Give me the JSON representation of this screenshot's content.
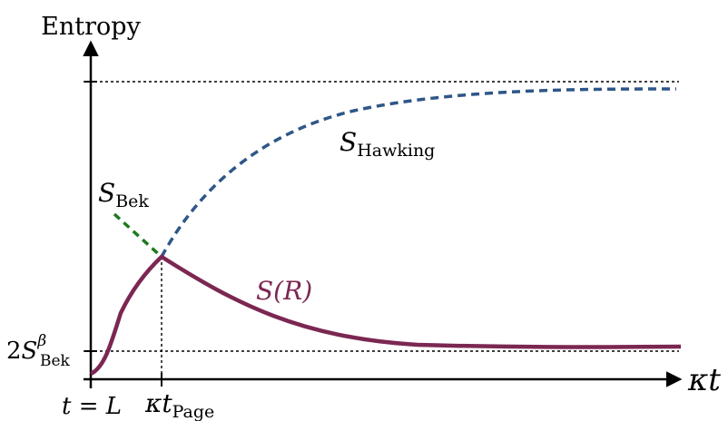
{
  "labels": {
    "y_axis_title": "Entropy",
    "x_axis_var": "κt",
    "s_hawking_main": "S",
    "s_hawking_sub": "Hawking",
    "s_bek_main": "S",
    "s_bek_sub": "Bek",
    "s_r": "S(R)",
    "y_tick_coef": "2",
    "y_tick_main": "S",
    "y_tick_sup": "β",
    "y_tick_sub": "Bek",
    "x_tick_1": "t = L",
    "x_tick_2_main": "κt",
    "x_tick_2_sub": "Page"
  },
  "colors": {
    "axis": "#000000",
    "hawking": "#2e5688",
    "bek": "#1f7a1f",
    "s_r": "#7b2752"
  }
}
